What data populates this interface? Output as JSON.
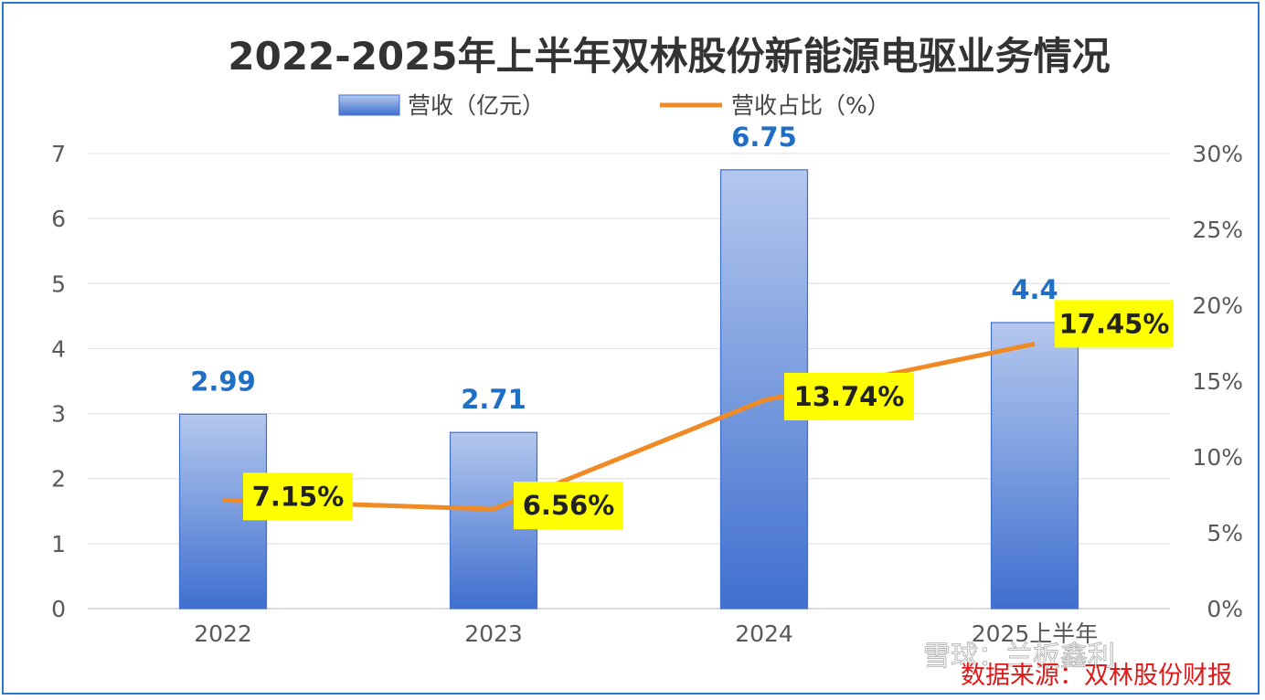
{
  "chart_data": {
    "type": "bar",
    "title": "2022-2025年上半年双林股份新能源电驱业务情况",
    "categories": [
      "2022",
      "2023",
      "2024",
      "2025上半年"
    ],
    "series": [
      {
        "name": "营收（亿元）",
        "type": "bar",
        "axis": "left",
        "values": [
          2.99,
          2.71,
          6.75,
          4.4
        ],
        "labels": [
          "2.99",
          "2.71",
          "6.75",
          "4.4"
        ],
        "color": "#4a7bd6"
      },
      {
        "name": "营收占比（%）",
        "type": "line",
        "axis": "right",
        "values": [
          7.15,
          6.56,
          13.74,
          17.45
        ],
        "labels": [
          "7.15%",
          "6.56%",
          "13.74%",
          "17.45%"
        ],
        "color": "#f08a24"
      }
    ],
    "y_left": {
      "ylim": [
        0,
        7
      ],
      "ticks": [
        "0",
        "1",
        "2",
        "3",
        "4",
        "5",
        "6",
        "7"
      ]
    },
    "y_right": {
      "ylim": [
        0,
        30
      ],
      "ticks": [
        "0%",
        "5%",
        "10%",
        "15%",
        "20%",
        "25%",
        "30%"
      ]
    },
    "grid": true,
    "legend_position": "top-center",
    "label_highlight_color": "#ffff00",
    "source_text": "数据来源：双林股份财报",
    "watermark_text": "雪球：兰板鑫利"
  }
}
